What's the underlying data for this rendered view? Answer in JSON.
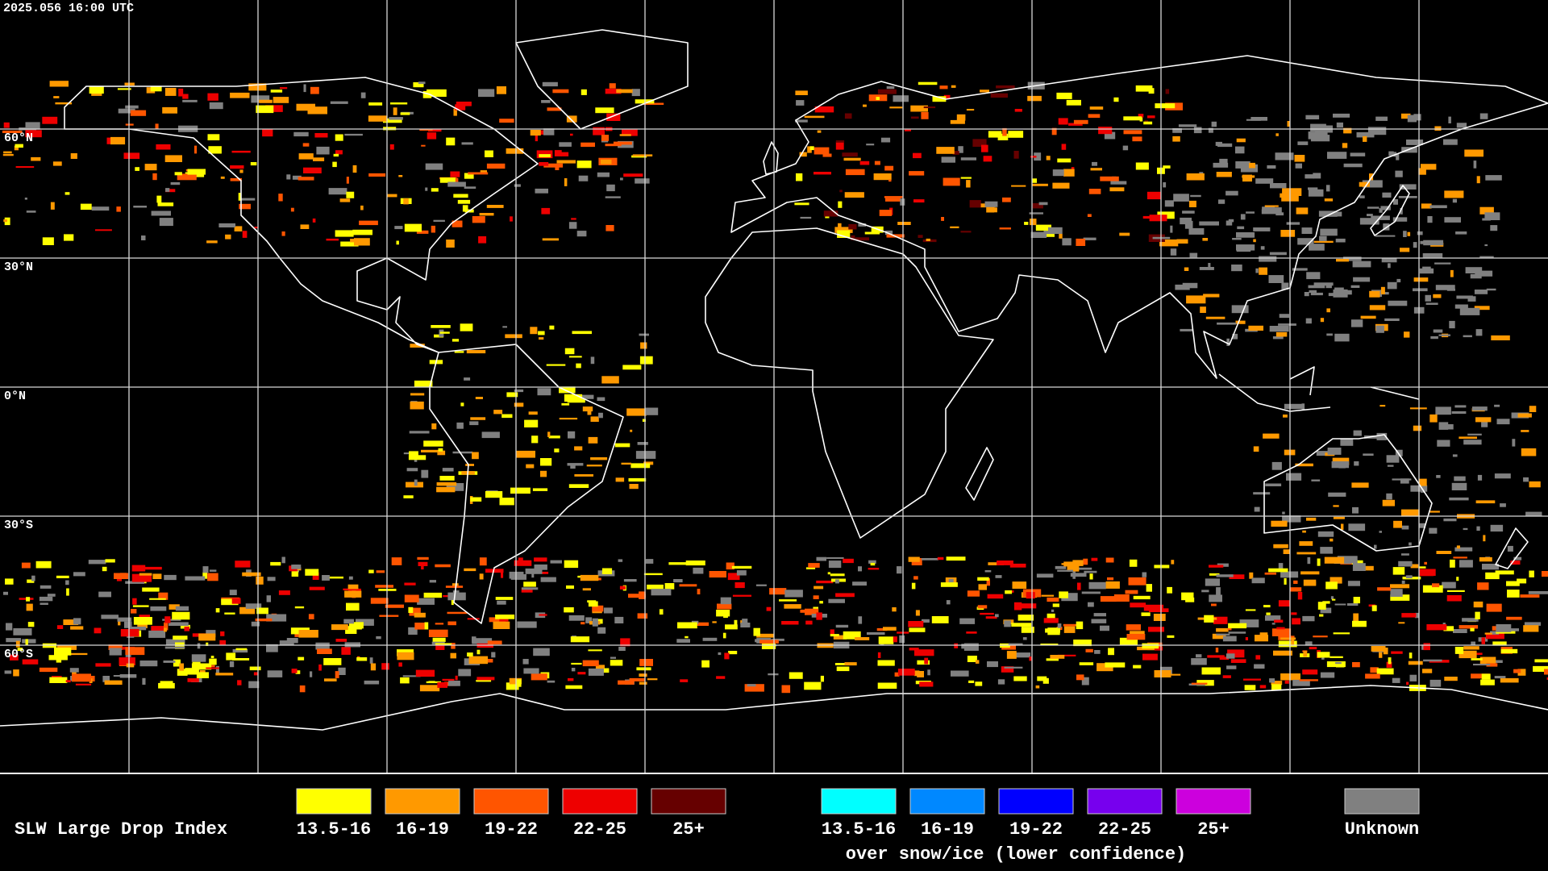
{
  "header": {
    "timestamp": "2025.056 16:00 UTC"
  },
  "map": {
    "latitude_labels": [
      "60°N",
      "30°N",
      "0°N",
      "30°S",
      "60°S"
    ]
  },
  "legend": {
    "title": "SLW Large Drop Index",
    "items": [
      {
        "label": "13.5-16",
        "color": "#ffff00"
      },
      {
        "label": "16-19",
        "color": "#ff9900"
      },
      {
        "label": "19-22",
        "color": "#ff5500"
      },
      {
        "label": "22-25",
        "color": "#ee0000"
      },
      {
        "label": "25+",
        "color": "#660000"
      }
    ],
    "snow_items": [
      {
        "label": "13.5-16",
        "color": "#00ffff"
      },
      {
        "label": "16-19",
        "color": "#0088ff"
      },
      {
        "label": "19-22",
        "color": "#0000ff"
      },
      {
        "label": "22-25",
        "color": "#7700ee"
      },
      {
        "label": "25+",
        "color": "#cc00dd"
      }
    ],
    "snow_caption": "over snow/ice (lower confidence)",
    "unknown": {
      "label": "Unknown",
      "color": "#808080"
    }
  }
}
